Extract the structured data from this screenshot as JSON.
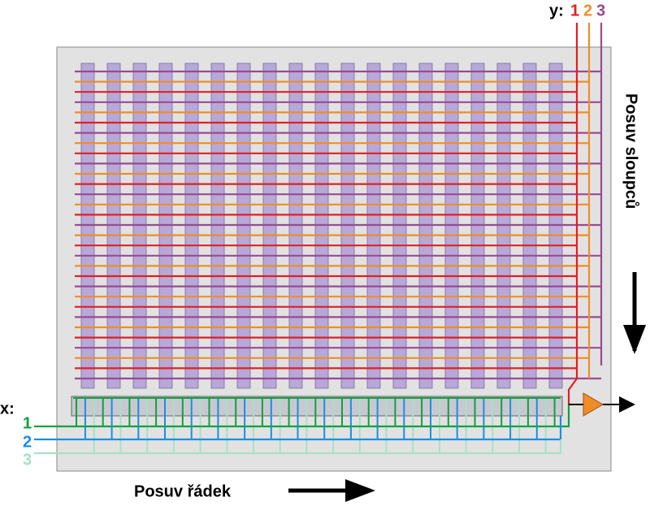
{
  "y_label": "y:",
  "y_lines": [
    "1",
    "2",
    "3"
  ],
  "x_label": "x:",
  "x_lines": [
    "1",
    "2",
    "3"
  ],
  "column_shift": "Posuv sloupců",
  "row_shift": "Posuv řádek"
}
